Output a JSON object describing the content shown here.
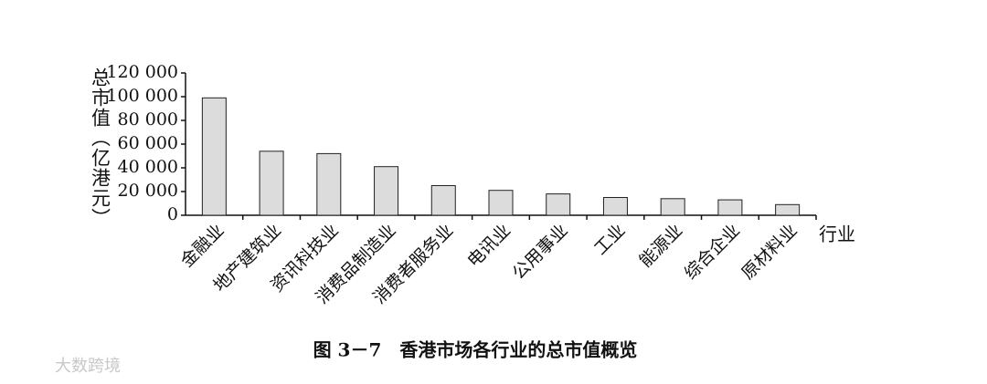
{
  "chart_data": {
    "type": "bar",
    "caption": "图 3－7　香港市场各行业的总市值概览",
    "y_label": "总市值（亿港元）",
    "x_label": "行业",
    "watermark": "大数跨境",
    "categories": [
      "金融业",
      "地产建筑业",
      "资讯科技业",
      "消费品制造业",
      "消费者服务业",
      "电讯业",
      "公用事业",
      "工业",
      "能源业",
      "综合企业",
      "原材料业"
    ],
    "values": [
      99000,
      54000,
      52000,
      41000,
      25000,
      21000,
      18000,
      15000,
      14000,
      13000,
      9000
    ],
    "color": "#dcdcdc",
    "ylim": [
      0,
      120000
    ],
    "yticks": [
      0,
      {
        "value": 20000,
        "label": "20 000"
      },
      {
        "value": 40000,
        "label": "40 000"
      },
      {
        "value": 60000,
        "label": "60 000"
      },
      {
        "value": 80000,
        "label": "80 000"
      },
      {
        "value": 100000,
        "label": "100 000"
      },
      {
        "value": 120000,
        "label": "120 000"
      }
    ]
  }
}
